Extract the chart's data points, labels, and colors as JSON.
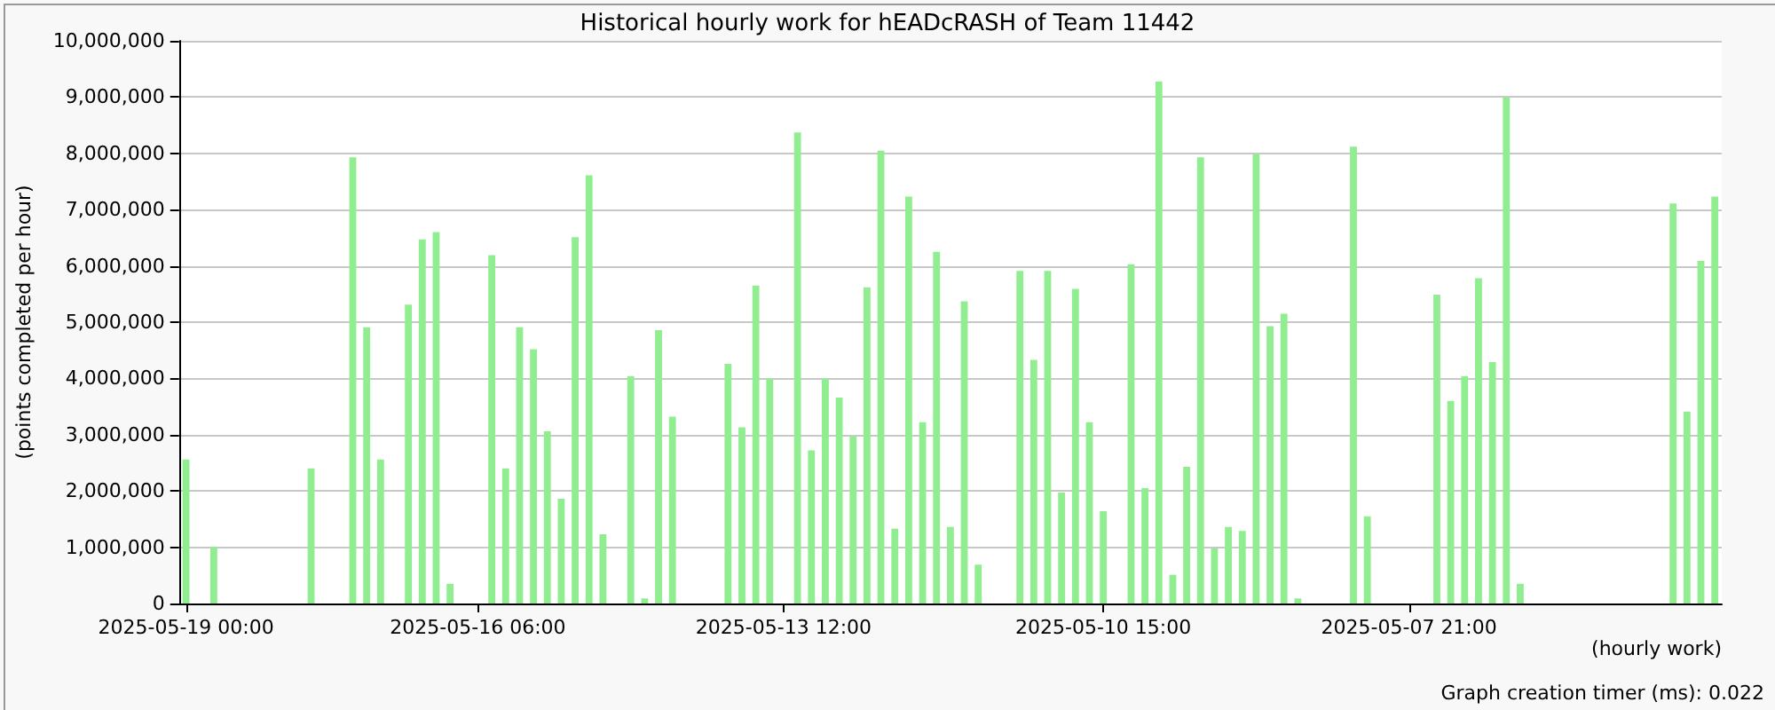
{
  "chart_data": {
    "type": "bar",
    "title": "Historical hourly work for hEADcRASH of Team 11442",
    "ylabel": "(points completed per hour)",
    "xlabel": "(hourly work)",
    "annotations": [
      "Graph creation timer (ms): 0.022"
    ],
    "categories": [
      "2025-05-19 00:00",
      null,
      null,
      null,
      null,
      null,
      null,
      null,
      null,
      null,
      null,
      null,
      null,
      null,
      null,
      null,
      null,
      null,
      null,
      null,
      null,
      "2025-05-16 06:00",
      null,
      null,
      null,
      null,
      null,
      null,
      null,
      null,
      null,
      null,
      null,
      null,
      null,
      null,
      null,
      null,
      null,
      null,
      null,
      null,
      null,
      "2025-05-13 12:00",
      null,
      null,
      null,
      null,
      null,
      null,
      null,
      null,
      null,
      null,
      null,
      null,
      null,
      null,
      null,
      null,
      null,
      null,
      null,
      null,
      null,
      null,
      "2025-05-10 15:00",
      null,
      null,
      null,
      null,
      null,
      null,
      null,
      null,
      null,
      null,
      null,
      null,
      null,
      null,
      null,
      null,
      null,
      null,
      null,
      null,
      null,
      "2025-05-07 21:00",
      null,
      null,
      null,
      null,
      null,
      null,
      null,
      null,
      null,
      null,
      null,
      null,
      null,
      null,
      null,
      null,
      null,
      null,
      null,
      null,
      null,
      null
    ],
    "values": [
      2560000,
      null,
      1000000,
      null,
      null,
      null,
      null,
      null,
      null,
      2400000,
      null,
      null,
      7930000,
      4910000,
      2560000,
      null,
      5310000,
      6470000,
      6600000,
      350000,
      null,
      null,
      6190000,
      2400000,
      4910000,
      4520000,
      3060000,
      1860000,
      6510000,
      7610000,
      1230000,
      null,
      4040000,
      90000,
      4860000,
      3320000,
      null,
      null,
      null,
      4260000,
      3130000,
      5650000,
      4000000,
      null,
      8370000,
      2720000,
      4000000,
      3660000,
      2970000,
      5620000,
      8050000,
      1330000,
      7230000,
      3220000,
      6250000,
      1360000,
      5370000,
      690000,
      null,
      null,
      5910000,
      4330000,
      5910000,
      1970000,
      5590000,
      3220000,
      1640000,
      null,
      6030000,
      2050000,
      9280000,
      510000,
      2430000,
      7930000,
      980000,
      1360000,
      1290000,
      7990000,
      4930000,
      5150000,
      90000,
      null,
      null,
      null,
      8120000,
      1550000,
      null,
      null,
      null,
      null,
      5490000,
      3600000,
      4040000,
      5780000,
      4290000,
      8990000,
      350000,
      null,
      null,
      null,
      null,
      null,
      null,
      null,
      null,
      null,
      null,
      7110000,
      3410000,
      6090000,
      7230000
    ],
    "color": "#90ee90",
    "ylim": [
      0,
      10000000
    ],
    "yticks": [
      0,
      {
        "value": 1000000,
        "label": "1,000,000"
      },
      {
        "value": 2000000,
        "label": "2,000,000"
      },
      {
        "value": 3000000,
        "label": "3,000,000"
      },
      {
        "value": 4000000,
        "label": "4,000,000"
      },
      {
        "value": 5000000,
        "label": "5,000,000"
      },
      {
        "value": 6000000,
        "label": "6,000,000"
      },
      {
        "value": 7000000,
        "label": "7,000,000"
      },
      {
        "value": 8000000,
        "label": "8,000,000"
      },
      {
        "value": 9000000,
        "label": "9,000,000"
      },
      {
        "value": 10000000,
        "label": "10,000,000"
      }
    ],
    "grid": "y"
  }
}
